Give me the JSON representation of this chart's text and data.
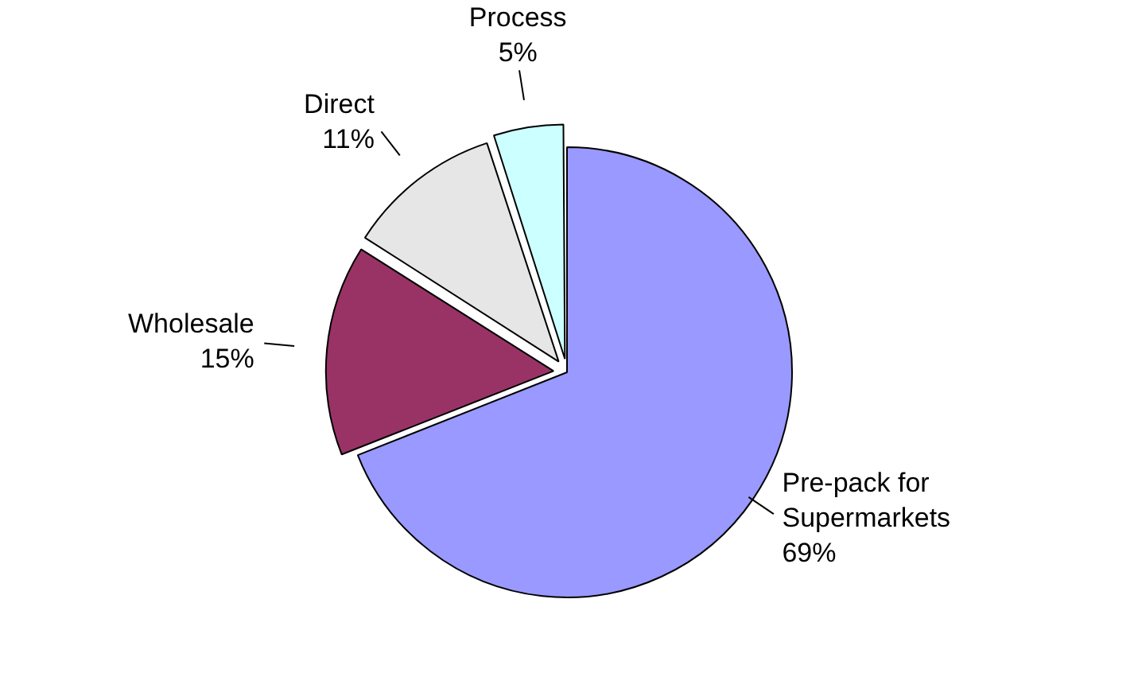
{
  "chart_data": {
    "type": "pie",
    "categories": [
      "Pre-pack for Supermarkets",
      "Wholesale",
      "Direct",
      "Process"
    ],
    "values": [
      69,
      15,
      11,
      5
    ],
    "colors": [
      "#9999ff",
      "#993366",
      "#e6e6e6",
      "#ccffff"
    ],
    "value_labels": [
      "69%",
      "15%",
      "11%",
      "5%"
    ],
    "legend": false
  }
}
